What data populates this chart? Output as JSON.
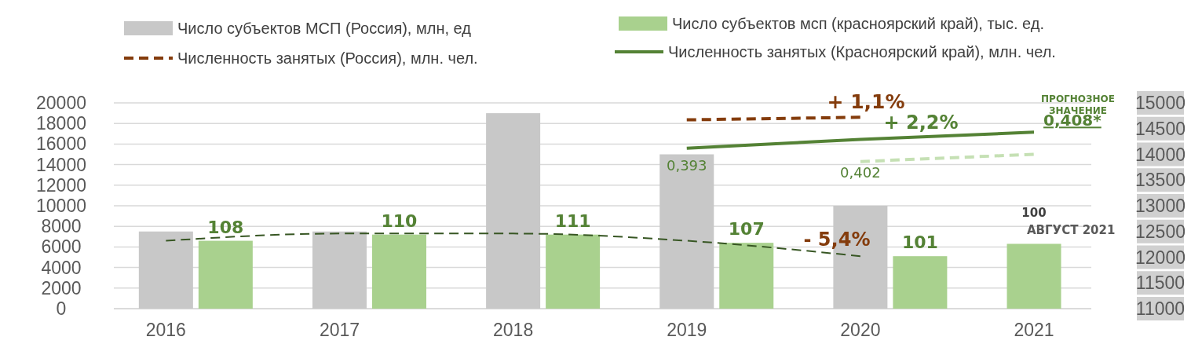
{
  "chart_data": {
    "type": "bar",
    "categories": [
      "2016",
      "2017",
      "2018",
      "2019",
      "2020",
      "2021"
    ],
    "ylim": [
      0,
      20000
    ],
    "yticks": [
      0,
      2000,
      4000,
      6000,
      8000,
      10000,
      12000,
      14000,
      16000,
      18000,
      20000
    ],
    "y2lim": [
      11000,
      15000
    ],
    "y2ticks": [
      11000,
      11500,
      12000,
      12500,
      13000,
      13500,
      14000,
      14500,
      15000
    ],
    "grid": "y",
    "legend": "top",
    "series": [
      {
        "name": "Число субъектов МСП (Россия), млн, ед",
        "color": "#c8c8c8",
        "values": [
          7500,
          7500,
          19000,
          15000,
          10000,
          null
        ]
      },
      {
        "name": "Число субъектов мсп (красноярский край), тыс. ед.",
        "color": "#a9d18e",
        "values": [
          6600,
          7200,
          7200,
          6400,
          5100,
          6300
        ]
      },
      {
        "name": "Численность занятых (Россия), млн. чел.",
        "type": "line",
        "axis": "y2",
        "color": "#843c0c",
        "line_style": "dashed",
        "values": [
          null,
          null,
          null,
          14670,
          14720,
          null
        ]
      },
      {
        "name": "Численность занятых (Красноярский край), млн. чел.",
        "type": "line",
        "axis": "y2",
        "color": "#548235",
        "line_style": "solid",
        "values": [
          null,
          null,
          null,
          14120,
          14290,
          14430
        ]
      },
      {
        "type": "line",
        "color": "#375623",
        "line_style": "dashed",
        "values": [
          6600,
          7300,
          7300,
          6600,
          5100,
          null
        ]
      },
      {
        "type": "line",
        "axis": "y2",
        "color": "#c5e0b4",
        "line_style": "dashed",
        "values": [
          null,
          null,
          null,
          null,
          13860,
          14000
        ]
      }
    ],
    "annotations": [
      "108",
      "110",
      "111",
      "107",
      "101",
      "100",
      "АВГУСТ 2021",
      "0,393",
      "0,402",
      "0,408*",
      "+ 1,1%",
      "+ 2,2%",
      "- 5,4%",
      "ПРОГНОЗНОЕ ЗНАЧЕНИЕ"
    ]
  }
}
